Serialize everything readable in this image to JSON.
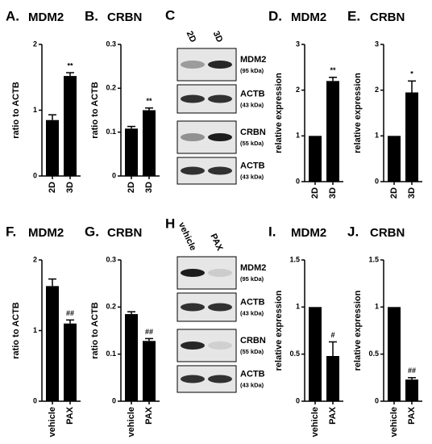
{
  "chart_data": [
    {
      "type": "bar",
      "label": "A.",
      "title": "MDM2",
      "y_label": "ratio to ACTB",
      "categories": [
        "2D",
        "3D"
      ],
      "values": [
        0.85,
        1.52
      ],
      "errors": [
        0.08,
        0.05
      ],
      "significance": [
        null,
        "**"
      ],
      "color": "#000000",
      "ylim": [
        0,
        2
      ],
      "yticks": [
        0,
        1,
        2
      ]
    },
    {
      "type": "bar",
      "label": "B.",
      "title": "CRBN",
      "y_label": "ratio to ACTB",
      "categories": [
        "2D",
        "3D"
      ],
      "values": [
        0.108,
        0.15
      ],
      "errors": [
        0.005,
        0.005
      ],
      "significance": [
        null,
        "**"
      ],
      "color": "#000000",
      "ylim": [
        0,
        0.3
      ],
      "yticks": [
        0,
        0.1,
        0.2,
        0.3
      ]
    },
    {
      "type": "blot",
      "label": "C",
      "lanes": [
        "2D",
        "3D"
      ],
      "bands": [
        {
          "name": "MDM2",
          "size": "(95 kDa)"
        },
        {
          "name": "ACTB",
          "size": "(43 kDa)"
        },
        {
          "name": "CRBN",
          "size": "(55 kDa)"
        },
        {
          "name": "ACTB",
          "size": "(43 kDa)"
        }
      ]
    },
    {
      "type": "bar",
      "label": "D.",
      "title": "MDM2",
      "y_label": "relative expression",
      "categories": [
        "2D",
        "3D"
      ],
      "values": [
        1,
        2.2
      ],
      "errors": [
        0,
        0.08
      ],
      "significance": [
        null,
        "**"
      ],
      "color": "#000000",
      "ylim": [
        0,
        3
      ],
      "yticks": [
        0,
        1,
        2,
        3
      ]
    },
    {
      "type": "bar",
      "label": "E.",
      "title": "CRBN",
      "y_label": "relative expression",
      "categories": [
        "2D",
        "3D"
      ],
      "values": [
        1,
        1.95
      ],
      "errors": [
        0,
        0.25
      ],
      "significance": [
        null,
        "*"
      ],
      "color": "#000000",
      "ylim": [
        0,
        3
      ],
      "yticks": [
        0,
        1,
        2,
        3
      ]
    },
    {
      "type": "bar",
      "label": "F.",
      "title": "MDM2",
      "y_label": "ratio to ACTB",
      "categories": [
        "vehicle",
        "PAX"
      ],
      "values": [
        1.63,
        1.1
      ],
      "errors": [
        0.1,
        0.05
      ],
      "significance": [
        null,
        "##"
      ],
      "color": "#000000",
      "ylim": [
        0,
        2
      ],
      "yticks": [
        0,
        1,
        2
      ]
    },
    {
      "type": "bar",
      "label": "G.",
      "title": "CRBN",
      "y_label": "ratio to ACTB",
      "categories": [
        "vehicle",
        "PAX"
      ],
      "values": [
        0.185,
        0.128
      ],
      "errors": [
        0.005,
        0.005
      ],
      "significance": [
        null,
        "##"
      ],
      "color": "#000000",
      "ylim": [
        0,
        0.3
      ],
      "yticks": [
        0,
        0.1,
        0.2,
        0.3
      ]
    },
    {
      "type": "blot",
      "label": "H",
      "lanes": [
        "vehicle",
        "PAX"
      ],
      "bands": [
        {
          "name": "MDM2",
          "size": "(95 kDa)"
        },
        {
          "name": "ACTB",
          "size": "(43 kDa)"
        },
        {
          "name": "CRBN",
          "size": "(55 kDa)"
        },
        {
          "name": "ACTB",
          "size": "(43 kDa)"
        }
      ]
    },
    {
      "type": "bar",
      "label": "I.",
      "title": "MDM2",
      "y_label": "relative expression",
      "categories": [
        "vehicle",
        "PAX"
      ],
      "values": [
        1,
        0.48
      ],
      "errors": [
        0,
        0.15
      ],
      "significance": [
        null,
        "#"
      ],
      "color": "#000000",
      "ylim": [
        0,
        1.5
      ],
      "yticks": [
        0,
        0.5,
        1,
        1.5
      ]
    },
    {
      "type": "bar",
      "label": "J.",
      "title": "CRBN",
      "y_label": "relative expression",
      "categories": [
        "vehicle",
        "PAX"
      ],
      "values": [
        1,
        0.23
      ],
      "errors": [
        0,
        0.02
      ],
      "significance": [
        null,
        "##"
      ],
      "color": "#000000",
      "ylim": [
        0,
        1.5
      ],
      "yticks": [
        0,
        0.5,
        1,
        1.5
      ]
    }
  ]
}
